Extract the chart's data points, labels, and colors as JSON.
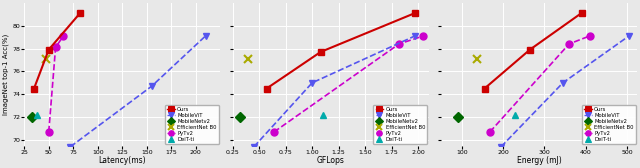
{
  "plots": [
    {
      "xlabel": "Latency(ms)",
      "xlim": [
        25,
        225
      ],
      "xticks": [
        25,
        50,
        75,
        100,
        125,
        150,
        175,
        200
      ],
      "ylim": [
        69.5,
        82
      ],
      "yticks": [
        70,
        72,
        74,
        76,
        78,
        80
      ]
    },
    {
      "xlabel": "GFLops",
      "xlim": [
        0.25,
        2.1
      ],
      "xticks": [
        0.25,
        0.5,
        0.75,
        1.0,
        1.25,
        1.5,
        1.75,
        2.0
      ],
      "ylim": [
        69.5,
        82
      ],
      "yticks": [
        70,
        72,
        74,
        76,
        78,
        80
      ]
    },
    {
      "xlabel": "Energy (mJ)",
      "xlim": [
        50,
        525
      ],
      "xticks": [
        100,
        200,
        300,
        400,
        500
      ],
      "ylim": [
        69.5,
        82
      ],
      "yticks": [
        70,
        72,
        74,
        76,
        78,
        80
      ]
    }
  ],
  "ylabel": "ImageNet top-1 Acc(%)",
  "series": {
    "Ours": {
      "color": "#cc0000",
      "marker": "s",
      "markersize": 5,
      "linestyle": "-",
      "linewidth": 1.5,
      "zorder": 5,
      "data": [
        [
          [
            35,
            50,
            82
          ],
          [
            74.5,
            77.9,
            81.1
          ]
        ],
        [
          [
            0.57,
            1.08,
            1.97
          ],
          [
            74.5,
            77.7,
            81.1
          ]
        ],
        [
          [
            155,
            265,
            390
          ],
          [
            74.5,
            77.9,
            81.1
          ]
        ]
      ]
    },
    "MobileViT": {
      "color": "#5555ee",
      "marker": "v",
      "markersize": 5,
      "linestyle": "--",
      "linewidth": 1.2,
      "zorder": 4,
      "data": [
        [
          [
            72,
            155,
            210
          ],
          [
            69.4,
            74.7,
            79.1
          ]
        ],
        [
          [
            0.45,
            1.0,
            1.97
          ],
          [
            69.4,
            75.0,
            79.1
          ]
        ],
        [
          [
            195,
            345,
            505
          ],
          [
            69.4,
            75.0,
            79.1
          ]
        ]
      ]
    },
    "MobileNetv2": {
      "color": "#006600",
      "marker": "D",
      "markersize": 5,
      "linestyle": "none",
      "linewidth": 0,
      "zorder": 4,
      "data": [
        [
          [
            33
          ],
          [
            72.0
          ]
        ],
        [
          [
            0.32
          ],
          [
            72.0
          ]
        ],
        [
          [
            90
          ],
          [
            72.0
          ]
        ]
      ]
    },
    "EfficientNet B0": {
      "color": "#aaaa00",
      "marker": "x",
      "markersize": 6,
      "linestyle": "none",
      "linewidth": 1.5,
      "zorder": 4,
      "data": [
        [
          [
            47
          ],
          [
            77.1
          ]
        ],
        [
          [
            0.39
          ],
          [
            77.1
          ]
        ],
        [
          [
            138
          ],
          [
            77.1
          ]
        ]
      ]
    },
    "PyTv2": {
      "color": "#cc00cc",
      "marker": "o",
      "markersize": 5,
      "linestyle": "--",
      "linewidth": 1.2,
      "zorder": 3,
      "data": [
        [
          [
            50,
            57,
            65
          ],
          [
            70.7,
            78.1,
            79.1
          ]
        ],
        [
          [
            0.64,
            1.82,
            2.05
          ],
          [
            70.7,
            78.4,
            79.1
          ]
        ],
        [
          [
            168,
            360,
            410
          ],
          [
            70.7,
            78.4,
            79.1
          ]
        ]
      ]
    },
    "DeiT-ti": {
      "color": "#00aaaa",
      "marker": "^",
      "markersize": 5,
      "linestyle": "none",
      "linewidth": 0,
      "zorder": 4,
      "data": [
        [
          [
            38
          ],
          [
            72.2
          ]
        ],
        [
          [
            1.1
          ],
          [
            72.2
          ]
        ],
        [
          [
            230
          ],
          [
            72.2
          ]
        ]
      ]
    }
  },
  "legend_labels": [
    "Ours",
    "MobileViT",
    "MobileNetv2",
    "EfficientNet B0",
    "PyTv2",
    "DeiT-ti"
  ],
  "background_color": "#e8e8e8",
  "grid_color": "#ffffff"
}
